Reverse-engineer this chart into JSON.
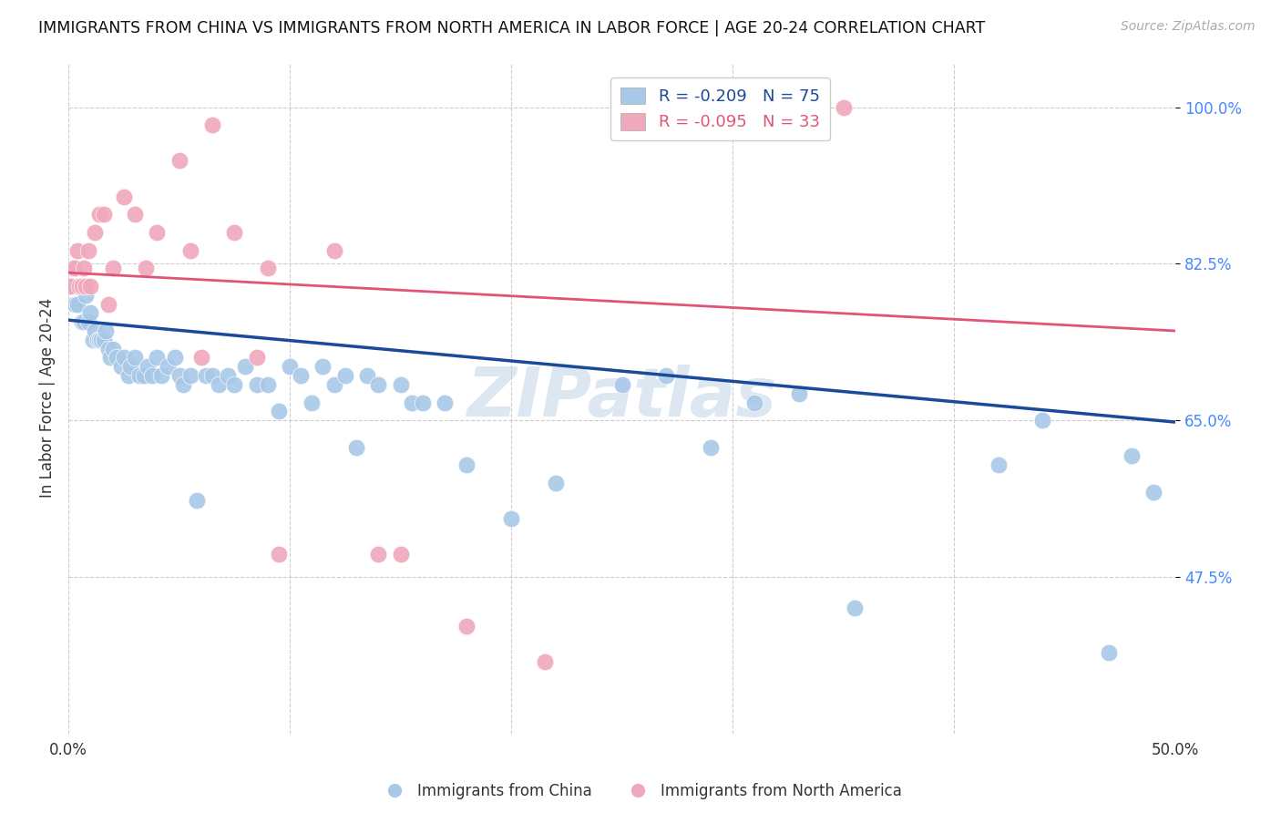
{
  "title": "IMMIGRANTS FROM CHINA VS IMMIGRANTS FROM NORTH AMERICA IN LABOR FORCE | AGE 20-24 CORRELATION CHART",
  "source": "Source: ZipAtlas.com",
  "ylabel": "In Labor Force | Age 20-24",
  "xlim": [
    0.0,
    0.5
  ],
  "ylim": [
    0.3,
    1.05
  ],
  "yticks": [
    0.475,
    0.65,
    0.825,
    1.0
  ],
  "ytick_labels": [
    "47.5%",
    "65.0%",
    "82.5%",
    "100.0%"
  ],
  "xticks": [
    0.0,
    0.1,
    0.2,
    0.3,
    0.4,
    0.5
  ],
  "xtick_labels": [
    "0.0%",
    "",
    "",
    "",
    "",
    "50.0%"
  ],
  "legend_r_china": "-0.209",
  "legend_n_china": "75",
  "legend_r_na": "-0.095",
  "legend_n_na": "33",
  "color_china": "#a8c8e8",
  "color_na": "#f0a8bc",
  "line_color_china": "#1a4a9a",
  "line_color_na": "#e05575",
  "watermark": "ZIPatlas",
  "china_x": [
    0.001,
    0.002,
    0.003,
    0.003,
    0.004,
    0.005,
    0.006,
    0.007,
    0.008,
    0.009,
    0.01,
    0.011,
    0.012,
    0.013,
    0.014,
    0.015,
    0.016,
    0.017,
    0.018,
    0.019,
    0.02,
    0.022,
    0.024,
    0.025,
    0.027,
    0.028,
    0.03,
    0.032,
    0.034,
    0.036,
    0.038,
    0.04,
    0.042,
    0.045,
    0.048,
    0.05,
    0.052,
    0.055,
    0.058,
    0.062,
    0.065,
    0.068,
    0.072,
    0.075,
    0.08,
    0.085,
    0.09,
    0.095,
    0.1,
    0.105,
    0.11,
    0.115,
    0.12,
    0.125,
    0.13,
    0.135,
    0.14,
    0.15,
    0.155,
    0.16,
    0.17,
    0.18,
    0.2,
    0.22,
    0.25,
    0.27,
    0.29,
    0.31,
    0.33,
    0.355,
    0.42,
    0.44,
    0.47,
    0.48,
    0.49
  ],
  "china_y": [
    0.8,
    0.82,
    0.8,
    0.78,
    0.78,
    0.8,
    0.76,
    0.76,
    0.79,
    0.76,
    0.77,
    0.74,
    0.75,
    0.74,
    0.74,
    0.74,
    0.74,
    0.75,
    0.73,
    0.72,
    0.73,
    0.72,
    0.71,
    0.72,
    0.7,
    0.71,
    0.72,
    0.7,
    0.7,
    0.71,
    0.7,
    0.72,
    0.7,
    0.71,
    0.72,
    0.7,
    0.69,
    0.7,
    0.56,
    0.7,
    0.7,
    0.69,
    0.7,
    0.69,
    0.71,
    0.69,
    0.69,
    0.66,
    0.71,
    0.7,
    0.67,
    0.71,
    0.69,
    0.7,
    0.62,
    0.7,
    0.69,
    0.69,
    0.67,
    0.67,
    0.67,
    0.6,
    0.54,
    0.58,
    0.69,
    0.7,
    0.62,
    0.67,
    0.68,
    0.44,
    0.6,
    0.65,
    0.39,
    0.61,
    0.57
  ],
  "na_x": [
    0.001,
    0.002,
    0.003,
    0.004,
    0.005,
    0.006,
    0.007,
    0.008,
    0.009,
    0.01,
    0.012,
    0.014,
    0.016,
    0.018,
    0.02,
    0.025,
    0.03,
    0.035,
    0.04,
    0.05,
    0.055,
    0.06,
    0.065,
    0.075,
    0.085,
    0.09,
    0.095,
    0.12,
    0.14,
    0.15,
    0.18,
    0.215,
    0.35
  ],
  "na_y": [
    0.8,
    0.82,
    0.82,
    0.84,
    0.8,
    0.8,
    0.82,
    0.8,
    0.84,
    0.8,
    0.86,
    0.88,
    0.88,
    0.78,
    0.82,
    0.9,
    0.88,
    0.82,
    0.86,
    0.94,
    0.84,
    0.72,
    0.98,
    0.86,
    0.72,
    0.82,
    0.5,
    0.84,
    0.5,
    0.5,
    0.42,
    0.38,
    1.0
  ],
  "china_line_x0": 0.0,
  "china_line_x1": 0.5,
  "china_line_y0": 0.762,
  "china_line_y1": 0.648,
  "na_line_x0": 0.0,
  "na_line_x1": 0.5,
  "na_line_y0": 0.815,
  "na_line_y1": 0.75
}
